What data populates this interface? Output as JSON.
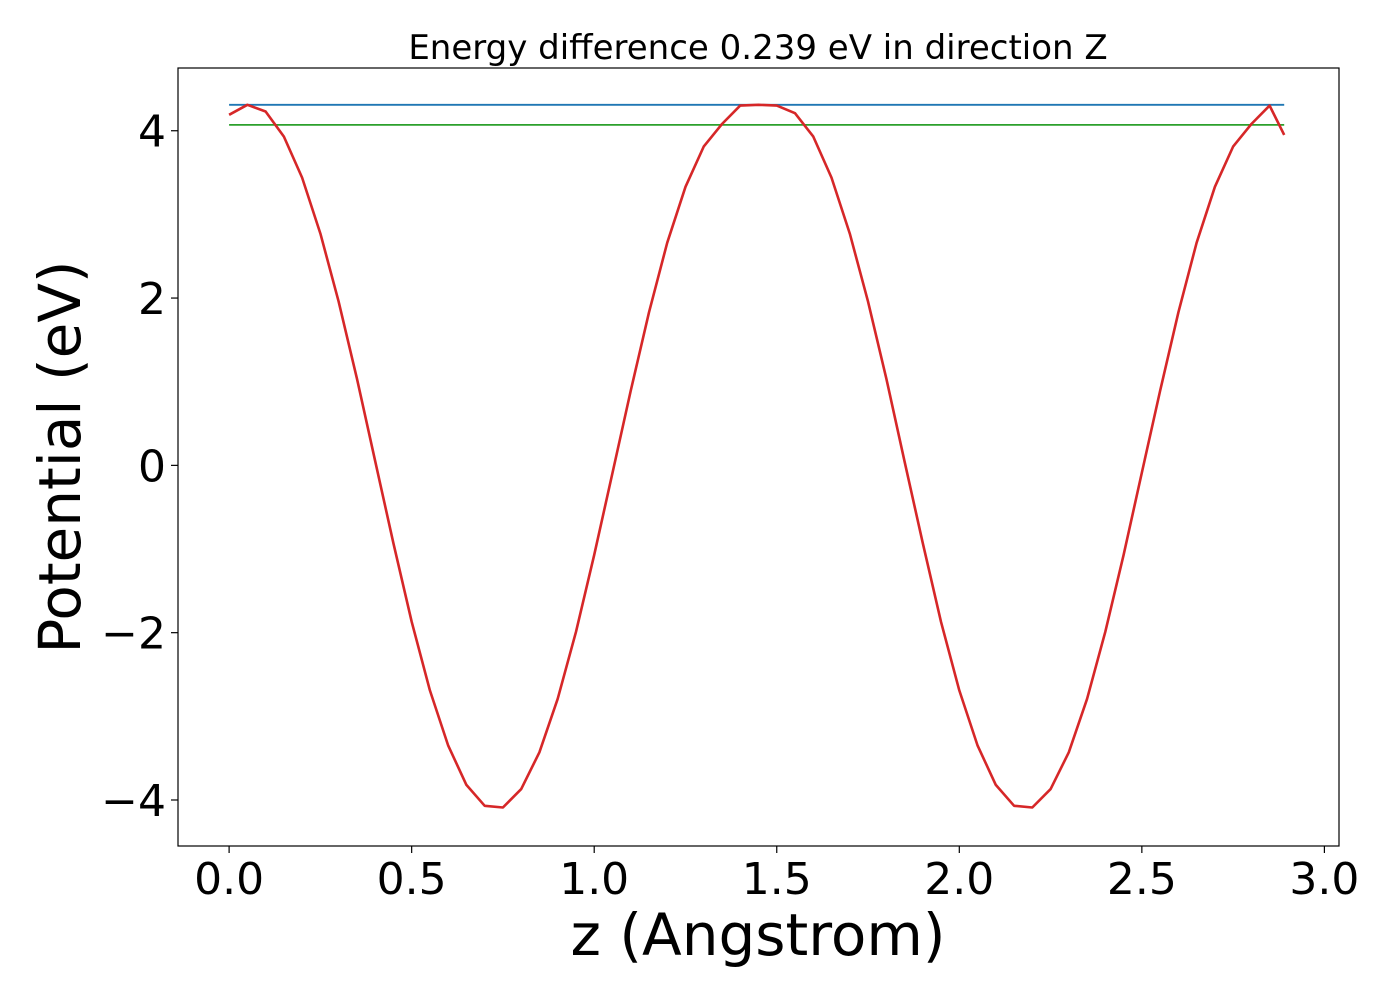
{
  "chart_data": {
    "type": "line",
    "title": "Energy difference 0.239 eV in direction Z",
    "xlabel": "z (Angstrom)",
    "ylabel": "Potential (eV)",
    "xlim": [
      -0.14,
      3.04
    ],
    "ylim": [
      -4.55,
      4.75
    ],
    "xticks": [
      0.0,
      0.5,
      1.0,
      1.5,
      2.0,
      2.5,
      3.0
    ],
    "xtick_labels": [
      "0.0",
      "0.5",
      "1.0",
      "1.5",
      "2.0",
      "2.5",
      "3.0"
    ],
    "yticks": [
      -4,
      -2,
      0,
      2,
      4
    ],
    "ytick_labels": [
      "−4",
      "−2",
      "0",
      "2",
      "4"
    ],
    "grid": false,
    "legend": "none",
    "series": [
      {
        "color": "#d62728",
        "x": [
          0.0,
          0.05,
          0.1,
          0.15,
          0.2,
          0.25,
          0.3,
          0.35,
          0.4,
          0.45,
          0.5,
          0.55,
          0.6,
          0.65,
          0.7,
          0.75,
          0.8,
          0.85,
          0.9,
          0.95,
          1.0,
          1.05,
          1.1,
          1.15,
          1.2,
          1.25,
          1.3,
          1.35,
          1.4,
          1.45,
          1.5,
          1.55,
          1.6,
          1.65,
          1.7,
          1.75,
          1.8,
          1.85,
          1.9,
          1.95,
          2.0,
          2.05,
          2.1,
          2.15,
          2.2,
          2.25,
          2.3,
          2.35,
          2.4,
          2.45,
          2.5,
          2.55,
          2.6,
          2.65,
          2.7,
          2.75,
          2.8,
          2.85,
          2.89
        ],
        "y": [
          4.19,
          4.31,
          4.23,
          3.93,
          3.44,
          2.77,
          1.96,
          1.04,
          0.05,
          -0.93,
          -1.87,
          -2.69,
          -3.35,
          -3.82,
          -4.07,
          -4.09,
          -3.87,
          -3.43,
          -2.79,
          -1.99,
          -1.07,
          -0.09,
          0.89,
          1.83,
          2.66,
          3.33,
          3.81,
          4.08,
          4.3,
          4.31,
          4.3,
          4.21,
          3.93,
          3.44,
          2.77,
          1.96,
          1.04,
          0.05,
          -0.93,
          -1.87,
          -2.69,
          -3.35,
          -3.82,
          -4.07,
          -4.09,
          -3.87,
          -3.43,
          -2.79,
          -1.99,
          -1.07,
          -0.09,
          0.89,
          1.83,
          2.66,
          3.33,
          3.81,
          4.08,
          4.3,
          3.95
        ]
      },
      {
        "color": "#1f77b4",
        "x": [
          0.0,
          2.89
        ],
        "y": [
          4.31,
          4.31
        ]
      },
      {
        "color": "#2ca02c",
        "x": [
          0.0,
          2.89
        ],
        "y": [
          4.07,
          4.07
        ]
      }
    ]
  }
}
